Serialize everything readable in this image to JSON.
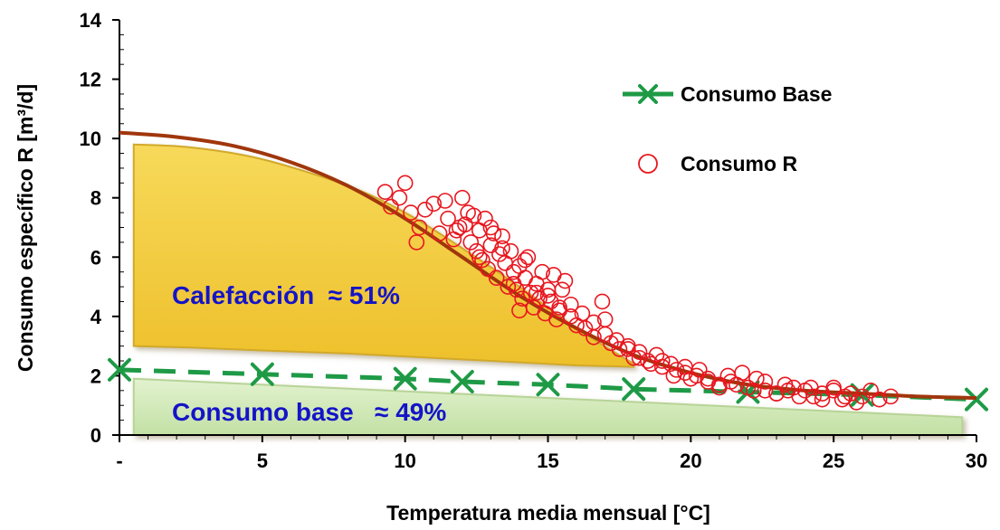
{
  "chart_data": {
    "type": "scatter",
    "xlabel": "Temperatura media  mensual [°C]",
    "ylabel": "Consumo específico R  [m³/d]",
    "xlim": [
      0,
      30
    ],
    "ylim": [
      0,
      14
    ],
    "x_ticks": [
      {
        "value": 0,
        "label": "-"
      },
      {
        "value": 5,
        "label": "5"
      },
      {
        "value": 10,
        "label": "10"
      },
      {
        "value": 15,
        "label": "15"
      },
      {
        "value": 20,
        "label": "20"
      },
      {
        "value": 25,
        "label": "25"
      },
      {
        "value": 30,
        "label": "30"
      }
    ],
    "y_ticks": [
      0,
      2,
      4,
      6,
      8,
      10,
      12,
      14
    ],
    "legend_position": "top-right",
    "colors": {
      "fit_curve": "#a0360c",
      "base_line": "#1e9a46",
      "scatter": "#e8161e",
      "heating_area": "#f4cd3e",
      "base_area": "#cfe8b3",
      "annotation_text": "#1414c8"
    },
    "series": [
      {
        "name": "Consumo Base",
        "kind": "line-dashed-x-markers",
        "x": [
          0,
          5,
          10,
          12,
          15,
          18,
          22,
          26,
          30
        ],
        "y": [
          2.2,
          2.05,
          1.9,
          1.8,
          1.7,
          1.55,
          1.45,
          1.35,
          1.2
        ]
      },
      {
        "name": "Consumo R",
        "kind": "scatter-circles",
        "x": [
          9.3,
          9.5,
          9.8,
          10.0,
          10.2,
          10.5,
          10.7,
          11.0,
          11.2,
          11.4,
          11.5,
          11.7,
          11.9,
          12.0,
          12.1,
          12.3,
          12.4,
          12.5,
          12.6,
          12.7,
          12.8,
          12.9,
          13.0,
          13.1,
          13.2,
          13.3,
          13.4,
          13.5,
          13.6,
          13.7,
          13.8,
          13.9,
          14.0,
          14.1,
          14.2,
          14.3,
          14.4,
          14.5,
          14.6,
          14.7,
          14.8,
          14.9,
          15.0,
          15.1,
          15.2,
          15.3,
          15.4,
          15.5,
          15.6,
          15.8,
          16.0,
          16.3,
          16.6,
          16.9,
          17.0,
          17.2,
          17.5,
          17.8,
          18.0,
          18.2,
          18.5,
          18.8,
          19.0,
          19.3,
          19.5,
          19.8,
          20.0,
          20.3,
          20.6,
          21.0,
          21.3,
          21.6,
          22.0,
          22.3,
          22.6,
          23.0,
          23.3,
          23.6,
          24.0,
          24.3,
          24.6,
          25.0,
          25.3,
          25.6,
          26.0,
          26.3,
          26.6,
          27.0,
          11.8,
          12.2,
          12.6,
          13.0,
          13.4,
          13.8,
          14.2,
          14.6,
          15.0,
          15.4,
          15.8,
          16.2,
          16.6,
          17.0,
          17.4,
          17.8,
          18.2,
          18.6,
          19.0,
          19.4,
          19.8,
          20.2,
          20.6,
          21.0,
          21.4,
          21.8,
          22.2,
          22.6,
          23.0,
          23.4,
          23.8,
          24.2,
          24.6,
          25.0,
          25.4,
          25.8,
          10.4,
          14.0
        ],
        "y": [
          8.2,
          7.7,
          8.0,
          8.5,
          7.5,
          7.0,
          7.6,
          7.8,
          6.8,
          7.9,
          7.3,
          6.6,
          7.0,
          8.0,
          7.1,
          6.5,
          7.4,
          6.2,
          6.9,
          5.9,
          7.3,
          5.6,
          6.4,
          6.8,
          5.3,
          6.1,
          6.7,
          5.8,
          5.0,
          6.2,
          5.5,
          4.9,
          5.7,
          4.6,
          5.3,
          6.0,
          4.8,
          4.3,
          5.1,
          4.6,
          5.5,
          4.1,
          4.9,
          4.5,
          5.4,
          3.9,
          4.3,
          4.9,
          5.2,
          4.0,
          3.7,
          3.6,
          3.3,
          4.5,
          3.9,
          3.1,
          2.9,
          3.0,
          2.6,
          2.8,
          2.5,
          2.7,
          2.3,
          2.4,
          2.2,
          2.1,
          1.9,
          2.2,
          1.8,
          1.7,
          2.0,
          1.7,
          1.6,
          1.9,
          1.5,
          1.4,
          1.7,
          1.6,
          1.5,
          1.3,
          1.4,
          1.6,
          1.2,
          1.4,
          1.3,
          1.5,
          1.2,
          1.3,
          6.9,
          7.5,
          6.0,
          7.0,
          6.3,
          5.1,
          5.9,
          4.8,
          4.7,
          4.2,
          4.4,
          4.1,
          3.8,
          3.4,
          3.2,
          2.9,
          2.6,
          2.4,
          2.5,
          2.0,
          2.3,
          2.0,
          1.9,
          1.6,
          1.8,
          2.1,
          1.5,
          1.8,
          1.4,
          1.5,
          1.3,
          1.6,
          1.2,
          1.5,
          1.3,
          1.1,
          6.5,
          4.2
        ]
      },
      {
        "name": "",
        "kind": "fit-curve",
        "x": [
          0,
          2,
          4,
          6,
          8,
          10,
          12,
          14,
          16,
          18,
          20,
          22,
          24,
          26,
          28,
          30
        ],
        "y": [
          10.2,
          10.05,
          9.75,
          9.2,
          8.4,
          7.3,
          6.0,
          4.7,
          3.6,
          2.7,
          2.1,
          1.7,
          1.5,
          1.4,
          1.3,
          1.25
        ]
      }
    ],
    "areas": [
      {
        "name": "heating",
        "label": "Calefacción  ≈ 51%",
        "x": [
          0.5,
          2.5,
          5,
          8,
          10,
          12,
          14,
          16,
          18
        ],
        "y_top": [
          9.8,
          9.7,
          9.3,
          8.4,
          7.5,
          6.3,
          5.0,
          3.6,
          2.4
        ],
        "y_bottom": [
          3.0,
          2.95,
          2.85,
          2.75,
          2.65,
          2.55,
          2.45,
          2.35,
          2.3
        ]
      },
      {
        "name": "base",
        "label": "Consumo base   ≈ 49%",
        "x": [
          0.5,
          29.5
        ],
        "y_top": [
          1.9,
          0.6
        ],
        "y_bottom": [
          0,
          0
        ]
      }
    ]
  }
}
